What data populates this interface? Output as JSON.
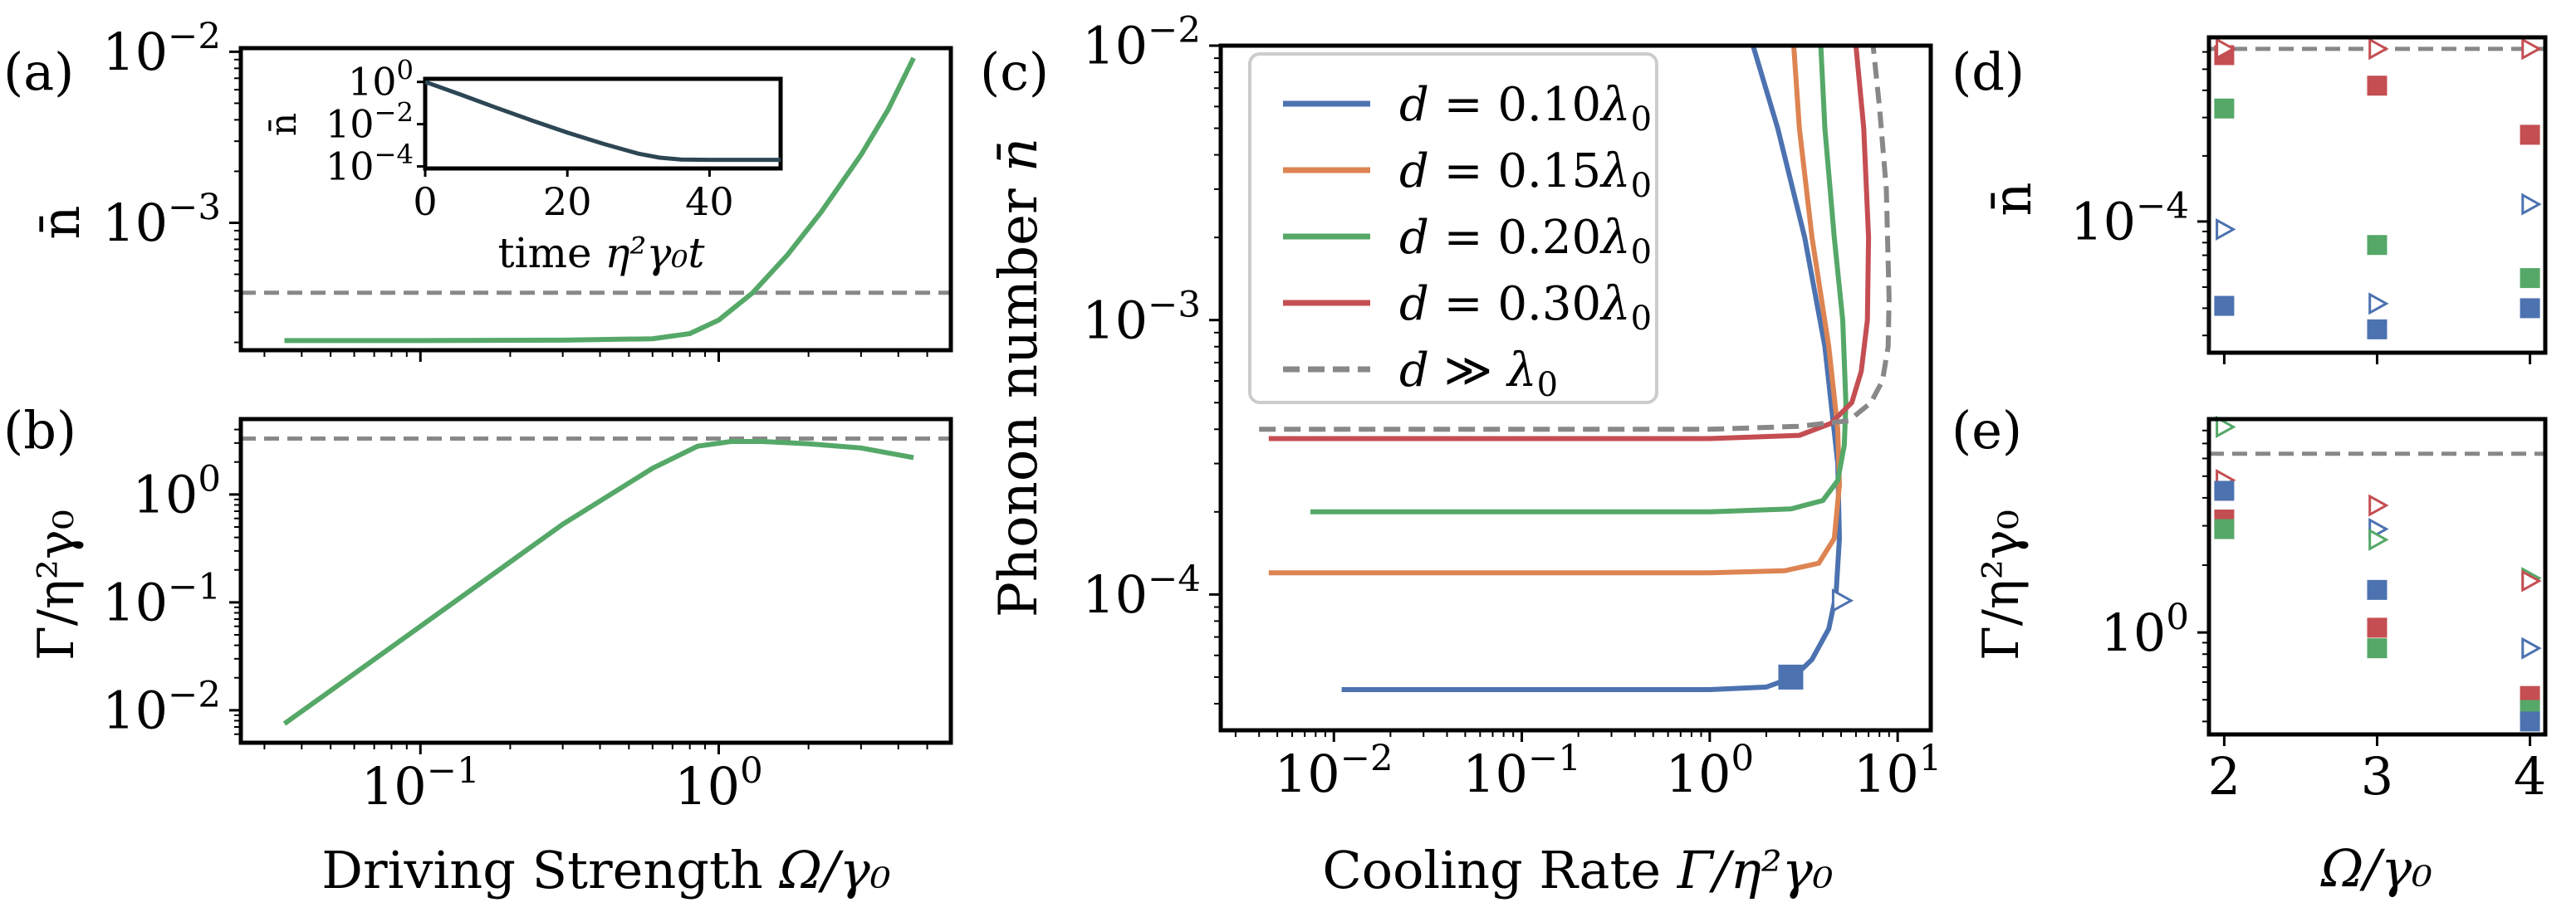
{
  "chart_data": [
    {
      "panel": "a",
      "type": "line",
      "label": "(a)",
      "xscale": "log",
      "yscale": "log",
      "xlim": [
        0.025,
        6
      ],
      "ylim": [
        0.00018,
        0.0105
      ],
      "ylabel": "n̄",
      "yticks": [
        {
          "v": 0.01,
          "base": "10",
          "exp": "−2"
        },
        {
          "v": 0.001,
          "base": "10",
          "exp": "−3"
        }
      ],
      "reference_line": 0.00039,
      "series": [
        {
          "name": "n̄ vs Ω",
          "color": "#55a868",
          "x": [
            0.035,
            0.1,
            0.3,
            0.6,
            0.8,
            1.0,
            1.3,
            1.7,
            2.2,
            3.0,
            3.7,
            4.5
          ],
          "y": [
            0.000205,
            0.000205,
            0.000206,
            0.00021,
            0.000225,
            0.00027,
            0.00039,
            0.00065,
            0.00115,
            0.0025,
            0.0046,
            0.0092
          ]
        }
      ],
      "inset": {
        "type": "line",
        "xlabel_main": "time ",
        "xlabel_var": "η²γ₀t",
        "ylabel": "n̄",
        "xlim": [
          0,
          50
        ],
        "ylim": [
          8e-05,
          1.4
        ],
        "xticks": [
          "0",
          "20",
          "40"
        ],
        "yticks": [
          {
            "v": 1,
            "base": "10",
            "exp": "0"
          },
          {
            "v": 0.01,
            "base": "10",
            "exp": "−2"
          },
          {
            "v": 0.0001,
            "base": "10",
            "exp": "−4"
          }
        ],
        "series": [
          {
            "color": "#2d4654",
            "x": [
              0,
              5,
              10,
              15,
              20,
              25,
              30,
              33,
              36,
              40,
              45,
              50
            ],
            "y": [
              1.0,
              0.25,
              0.06,
              0.015,
              0.004,
              0.0012,
              0.0004,
              0.00026,
              0.00021,
              0.000205,
              0.000205,
              0.000205
            ]
          }
        ]
      }
    },
    {
      "panel": "b",
      "type": "line",
      "label": "(b)",
      "xscale": "log",
      "yscale": "log",
      "xlim": [
        0.025,
        6
      ],
      "ylim": [
        0.005,
        5
      ],
      "xlabel_main": "Driving Strength ",
      "xlabel_var": "Ω/γ₀",
      "ylabel": "Γ/η²γ₀",
      "xticks": [
        {
          "v": 0.1,
          "base": "10",
          "exp": "−1"
        },
        {
          "v": 1,
          "base": "10",
          "exp": "0"
        }
      ],
      "yticks": [
        {
          "v": 1,
          "base": "10",
          "exp": "0"
        },
        {
          "v": 0.1,
          "base": "10",
          "exp": "−1"
        },
        {
          "v": 0.01,
          "base": "10",
          "exp": "−2"
        }
      ],
      "reference_line": 3.3,
      "series": [
        {
          "name": "Γ vs Ω",
          "color": "#55a868",
          "x": [
            0.035,
            0.1,
            0.3,
            0.6,
            0.85,
            1.1,
            1.4,
            2.0,
            3.0,
            4.5
          ],
          "y": [
            0.0075,
            0.06,
            0.53,
            1.75,
            2.8,
            3.1,
            3.1,
            2.95,
            2.7,
            2.2
          ]
        }
      ]
    },
    {
      "panel": "c",
      "type": "line",
      "label": "(c)",
      "xscale": "log",
      "yscale": "log",
      "xlim": [
        0.0025,
        15
      ],
      "ylim": [
        3.2e-05,
        0.01
      ],
      "xlabel_main": "Cooling Rate ",
      "xlabel_var": "Γ/η²γ₀",
      "ylabel_main": "Phonon number ",
      "ylabel_var": "n̄",
      "xticks": [
        {
          "v": 0.01,
          "base": "10",
          "exp": "−2"
        },
        {
          "v": 0.1,
          "base": "10",
          "exp": "−1"
        },
        {
          "v": 1,
          "base": "10",
          "exp": "0"
        },
        {
          "v": 10,
          "base": "10",
          "exp": "1"
        }
      ],
      "yticks": [
        {
          "v": 0.01,
          "base": "10",
          "exp": "−2"
        },
        {
          "v": 0.001,
          "base": "10",
          "exp": "−3"
        },
        {
          "v": 0.0001,
          "base": "10",
          "exp": "−4"
        }
      ],
      "series": [
        {
          "name": "d = 0.10λ₀",
          "d_value": "0.10",
          "color": "#4c72b0",
          "dash": false,
          "x": [
            0.011,
            0.1,
            1.0,
            2.0,
            2.8,
            3.5,
            4.3,
            4.7,
            4.9,
            4.8,
            4.1,
            3.2,
            2.3,
            1.7
          ],
          "y": [
            4.5e-05,
            4.5e-05,
            4.5e-05,
            4.6e-05,
            5e-05,
            5.8e-05,
            7.5e-05,
            0.0001,
            0.00016,
            0.0003,
            0.0008,
            0.002,
            0.005,
            0.01
          ]
        },
        {
          "name": "d = 0.15λ₀",
          "d_value": "0.15",
          "color": "#dd8452",
          "dash": false,
          "x": [
            0.0045,
            0.1,
            1.0,
            2.5,
            3.8,
            4.6,
            4.9,
            4.8,
            4.3,
            3.5,
            3.0,
            2.8
          ],
          "y": [
            0.00012,
            0.00012,
            0.00012,
            0.000122,
            0.00013,
            0.00016,
            0.00025,
            0.0004,
            0.0008,
            0.002,
            0.005,
            0.01
          ]
        },
        {
          "name": "d = 0.20λ₀",
          "d_value": "0.20",
          "color": "#55a868",
          "dash": false,
          "x": [
            0.0075,
            0.1,
            1.0,
            2.7,
            4.0,
            4.8,
            5.2,
            5.3,
            5.1,
            4.6,
            4.1,
            3.9
          ],
          "y": [
            0.0002,
            0.0002,
            0.0002,
            0.000205,
            0.00022,
            0.00026,
            0.00035,
            0.0005,
            0.001,
            0.002,
            0.005,
            0.01
          ]
        },
        {
          "name": "d = 0.30λ₀",
          "d_value": "0.30",
          "color": "#c44e52",
          "dash": false,
          "x": [
            0.0045,
            0.1,
            1.0,
            3.0,
            4.4,
            5.7,
            6.4,
            6.9,
            7.0,
            6.6,
            6.0
          ],
          "y": [
            0.00037,
            0.00037,
            0.00037,
            0.00038,
            0.00042,
            0.0005,
            0.00065,
            0.001,
            0.002,
            0.005,
            0.01
          ]
        },
        {
          "name": "d ≫ λ₀",
          "d_value": "≫",
          "color": "#888888",
          "dash": true,
          "x": [
            0.004,
            0.1,
            1.0,
            3.0,
            5.5,
            7.2,
            8.3,
            8.9,
            9.0,
            8.7,
            8.0,
            7.4
          ],
          "y": [
            0.0004,
            0.0004,
            0.0004,
            0.00041,
            0.00043,
            0.0005,
            0.0006,
            0.0008,
            0.0012,
            0.003,
            0.006,
            0.01
          ]
        }
      ],
      "markers": [
        {
          "type": "square",
          "color": "#4c72b0",
          "x": 2.7,
          "y": 5e-05
        },
        {
          "type": "triangle-right-open",
          "color": "#4c72b0",
          "x": 5.0,
          "y": 9.5e-05
        }
      ],
      "legend_position": "top-left"
    },
    {
      "panel": "d",
      "type": "scatter",
      "label": "(d)",
      "yscale": "log",
      "xlim": [
        1.9,
        4.1
      ],
      "ylim": [
        2.5e-05,
        0.0007
      ],
      "ylabel": "n̄",
      "yticks": [
        {
          "v": 0.0001,
          "base": "10",
          "exp": "−4"
        }
      ],
      "reference_line": 0.00062,
      "points": [
        {
          "x": 2,
          "y": 0.00058,
          "color": "#c44e52",
          "marker": "square"
        },
        {
          "x": 2,
          "y": 0.00062,
          "color": "#c44e52",
          "marker": "triangle-right-open"
        },
        {
          "x": 2,
          "y": 0.00033,
          "color": "#55a868",
          "marker": "square"
        },
        {
          "x": 2,
          "y": 9.2e-05,
          "color": "#4c72b0",
          "marker": "triangle-right-open"
        },
        {
          "x": 2,
          "y": 4.1e-05,
          "color": "#4c72b0",
          "marker": "square"
        },
        {
          "x": 3,
          "y": 0.00062,
          "color": "#c44e52",
          "marker": "triangle-right-open"
        },
        {
          "x": 3,
          "y": 0.00042,
          "color": "#c44e52",
          "marker": "square"
        },
        {
          "x": 3,
          "y": 7.8e-05,
          "color": "#55a868",
          "marker": "square"
        },
        {
          "x": 3,
          "y": 4.2e-05,
          "color": "#4c72b0",
          "marker": "triangle-right-open"
        },
        {
          "x": 3,
          "y": 3.2e-05,
          "color": "#4c72b0",
          "marker": "square"
        },
        {
          "x": 4,
          "y": 0.00062,
          "color": "#c44e52",
          "marker": "triangle-right-open"
        },
        {
          "x": 4,
          "y": 0.00025,
          "color": "#c44e52",
          "marker": "square"
        },
        {
          "x": 4,
          "y": 0.00012,
          "color": "#4c72b0",
          "marker": "triangle-right-open"
        },
        {
          "x": 4,
          "y": 5.5e-05,
          "color": "#55a868",
          "marker": "square"
        },
        {
          "x": 4,
          "y": 4e-05,
          "color": "#4c72b0",
          "marker": "square"
        }
      ]
    },
    {
      "panel": "e",
      "type": "scatter",
      "label": "(e)",
      "yscale": "log",
      "xlim": [
        1.9,
        4.1
      ],
      "ylim": [
        0.35,
        9
      ],
      "xlabel": "Ω/γ₀",
      "ylabel": "Γ/η²γ₀",
      "xticks": [
        "2",
        "3",
        "4"
      ],
      "yticks": [
        {
          "v": 1,
          "base": "10",
          "exp": "0"
        }
      ],
      "reference_line": 6.3,
      "points": [
        {
          "x": 2,
          "y": 8.3,
          "color": "#55a868",
          "marker": "triangle-right-open"
        },
        {
          "x": 2,
          "y": 4.8,
          "color": "#c44e52",
          "marker": "triangle-right-open"
        },
        {
          "x": 2,
          "y": 4.3,
          "color": "#4c72b0",
          "marker": "square"
        },
        {
          "x": 2,
          "y": 3.2,
          "color": "#c44e52",
          "marker": "square"
        },
        {
          "x": 2,
          "y": 2.9,
          "color": "#55a868",
          "marker": "square"
        },
        {
          "x": 3,
          "y": 3.7,
          "color": "#c44e52",
          "marker": "triangle-right-open"
        },
        {
          "x": 3,
          "y": 2.9,
          "color": "#4c72b0",
          "marker": "triangle-right-open"
        },
        {
          "x": 3,
          "y": 2.6,
          "color": "#55a868",
          "marker": "triangle-right-open"
        },
        {
          "x": 3,
          "y": 1.55,
          "color": "#4c72b0",
          "marker": "square"
        },
        {
          "x": 3,
          "y": 1.05,
          "color": "#c44e52",
          "marker": "square"
        },
        {
          "x": 3,
          "y": 0.85,
          "color": "#55a868",
          "marker": "square"
        },
        {
          "x": 4,
          "y": 1.75,
          "color": "#55a868",
          "marker": "triangle-right-open"
        },
        {
          "x": 4,
          "y": 1.7,
          "color": "#c44e52",
          "marker": "triangle-right-open"
        },
        {
          "x": 4,
          "y": 0.85,
          "color": "#4c72b0",
          "marker": "triangle-right-open"
        },
        {
          "x": 4,
          "y": 0.52,
          "color": "#c44e52",
          "marker": "square"
        },
        {
          "x": 4,
          "y": 0.45,
          "color": "#55a868",
          "marker": "square"
        },
        {
          "x": 4,
          "y": 0.4,
          "color": "#4c72b0",
          "marker": "square"
        }
      ]
    }
  ]
}
